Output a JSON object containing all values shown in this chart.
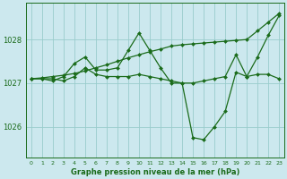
{
  "title": "Graphe pression niveau de la mer (hPa)",
  "background_color": "#cce8ee",
  "grid_color": "#99cccc",
  "line_color": "#1a6b1a",
  "ylim": [
    1025.3,
    1028.85
  ],
  "xlim": [
    -0.5,
    23.5
  ],
  "yticks": [
    1026,
    1027,
    1028
  ],
  "xticks": [
    0,
    1,
    2,
    3,
    4,
    5,
    6,
    7,
    8,
    9,
    10,
    11,
    12,
    13,
    14,
    15,
    16,
    17,
    18,
    19,
    20,
    21,
    22,
    23
  ],
  "series": [
    {
      "x": [
        0,
        1,
        2,
        3,
        4,
        5,
        6,
        7,
        8,
        9,
        10,
        11,
        12,
        13,
        14,
        15,
        16,
        17,
        18,
        19,
        20,
        21,
        22,
        23
      ],
      "y": [
        1027.1,
        1027.12,
        1027.15,
        1027.18,
        1027.22,
        1027.28,
        1027.35,
        1027.42,
        1027.5,
        1027.58,
        1027.65,
        1027.72,
        1027.78,
        1027.85,
        1027.88,
        1027.9,
        1027.92,
        1027.94,
        1027.96,
        1027.98,
        1028.0,
        1028.2,
        1028.4,
        1028.6
      ]
    },
    {
      "x": [
        0,
        1,
        2,
        3,
        4,
        5,
        6,
        7,
        8,
        9,
        10,
        11,
        12,
        13,
        14,
        15,
        16,
        17,
        18,
        19,
        20,
        21,
        22,
        23
      ],
      "y": [
        1027.1,
        1027.1,
        1027.05,
        1027.15,
        1027.45,
        1027.6,
        1027.3,
        1027.3,
        1027.35,
        1027.75,
        1028.15,
        1027.75,
        1027.35,
        1027.0,
        1027.0,
        1025.75,
        1025.7,
        1026.0,
        1026.35,
        1027.25,
        1027.15,
        1027.6,
        1028.1,
        1028.55
      ]
    },
    {
      "x": [
        0,
        1,
        2,
        3,
        4,
        5,
        6,
        7,
        8,
        9,
        10,
        11,
        12,
        13,
        14,
        15,
        16,
        17,
        18,
        19,
        20,
        21,
        22,
        23
      ],
      "y": [
        1027.1,
        1027.1,
        1027.1,
        1027.05,
        1027.15,
        1027.35,
        1027.2,
        1027.15,
        1027.15,
        1027.15,
        1027.2,
        1027.15,
        1027.1,
        1027.05,
        1027.0,
        1027.0,
        1027.05,
        1027.1,
        1027.15,
        1027.65,
        1027.15,
        1027.2,
        1027.2,
        1027.1
      ]
    }
  ]
}
